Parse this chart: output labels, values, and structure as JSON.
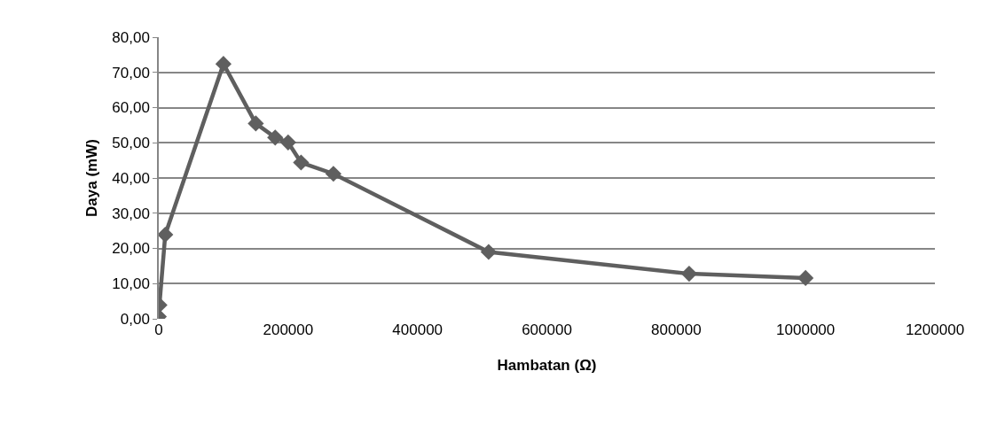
{
  "chart_data": {
    "type": "line",
    "xlabel": "Hambatan (Ω)",
    "ylabel": "Daya (mW)",
    "x": [
      0,
      1000,
      10000,
      100000,
      150000,
      180000,
      200000,
      220000,
      270000,
      510000,
      820000,
      1000000
    ],
    "series": [
      {
        "color": "#5f5f5f",
        "values": [
          0.6,
          3.9,
          23.9,
          72.4,
          55.5,
          51.5,
          50.1,
          44.4,
          41.2,
          19.0,
          12.8,
          11.6
        ]
      }
    ],
    "xlim": [
      0,
      1200000
    ],
    "xticks": [
      0,
      200000,
      400000,
      600000,
      800000,
      1000000,
      1200000
    ],
    "ylim": [
      0,
      80
    ],
    "yticks": [
      {
        "value": 0,
        "label": "0,00"
      },
      {
        "value": 10,
        "label": "10,00"
      },
      {
        "value": 20,
        "label": "20,00"
      },
      {
        "value": 30,
        "label": "30,00"
      },
      {
        "value": 40,
        "label": "40,00"
      },
      {
        "value": 50,
        "label": "50,00"
      },
      {
        "value": 60,
        "label": "60,00"
      },
      {
        "value": 70,
        "label": "70,00"
      },
      {
        "value": 80,
        "label": "80,00"
      }
    ],
    "grid": "y",
    "marker": "diamond",
    "line_style": "solid"
  }
}
